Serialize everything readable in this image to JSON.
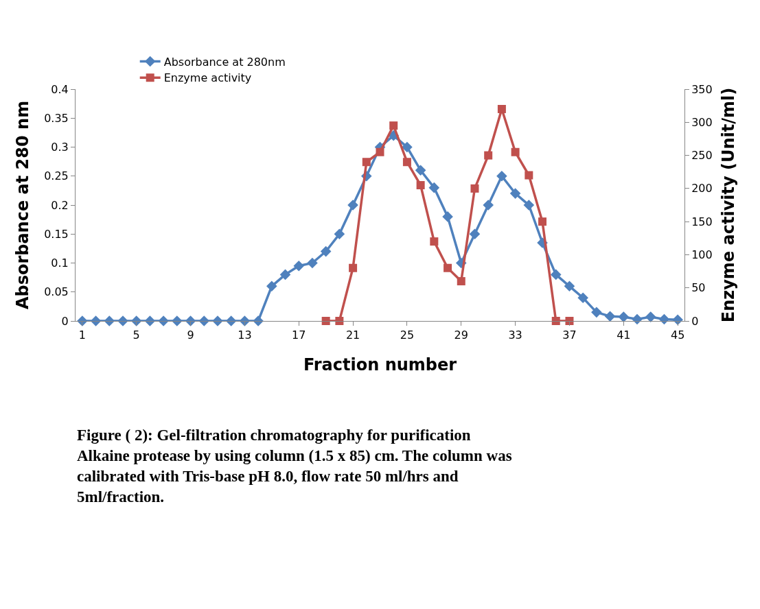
{
  "chart_data": {
    "type": "line",
    "xlabel": "Fraction number",
    "ylabel": "Absorbance at 280 nm",
    "y2label": "Enzyme activity (Unit/ml)",
    "x": [
      1,
      2,
      3,
      4,
      5,
      6,
      7,
      8,
      9,
      10,
      11,
      12,
      13,
      14,
      15,
      16,
      17,
      18,
      19,
      20,
      21,
      22,
      23,
      24,
      25,
      26,
      27,
      28,
      29,
      30,
      31,
      32,
      33,
      34,
      35,
      36,
      37,
      38,
      39,
      40,
      41,
      42,
      43,
      44,
      45
    ],
    "series": [
      {
        "name": "Absorbance at 280nm",
        "color": "#4f81bd",
        "marker": "diamond",
        "values": [
          0,
          0,
          0,
          0,
          0,
          0,
          0,
          0,
          0,
          0,
          0,
          0,
          0,
          0,
          0.06,
          0.08,
          0.095,
          0.1,
          0.12,
          0.15,
          0.2,
          0.25,
          0.3,
          0.32,
          0.3,
          0.26,
          0.23,
          0.18,
          0.1,
          0.15,
          0.2,
          0.25,
          0.22,
          0.2,
          0.135,
          0.08,
          0.06,
          0.04,
          0.015,
          0.008,
          0.007,
          0.003,
          0.007,
          0.003,
          0.002
        ]
      },
      {
        "name": "Enzyme activity",
        "color": "#c0504d",
        "marker": "square",
        "axis": "y2",
        "x": [
          19,
          20,
          21,
          22,
          23,
          24,
          25,
          26,
          27,
          28,
          29,
          30,
          31,
          32,
          33,
          34,
          35,
          36,
          37
        ],
        "values": [
          0,
          0,
          80,
          240,
          255,
          295,
          240,
          205,
          120,
          80,
          60,
          200,
          250,
          320,
          255,
          220,
          150,
          0,
          0
        ]
      }
    ],
    "xlim": [
      0.5,
      45.5
    ],
    "xticks": [
      1,
      5,
      9,
      13,
      17,
      21,
      25,
      29,
      33,
      37,
      41,
      45
    ],
    "ylim": [
      0,
      0.4
    ],
    "yticks": [
      0,
      0.05,
      0.1,
      0.15,
      0.2,
      0.25,
      0.3,
      0.35,
      0.4
    ],
    "y2lim": [
      0,
      350
    ],
    "y2ticks": [
      0,
      50,
      100,
      150,
      200,
      250,
      300,
      350
    ],
    "legend": "top left",
    "annotations": [
      "Figure ( 2): Gel-filtration chromatography for purification Alkaine protease by using column (1.5 x 85) cm. The column was calibrated with Tris-base pH 8.0, flow rate 50 ml/hrs and 5ml/fraction."
    ]
  }
}
